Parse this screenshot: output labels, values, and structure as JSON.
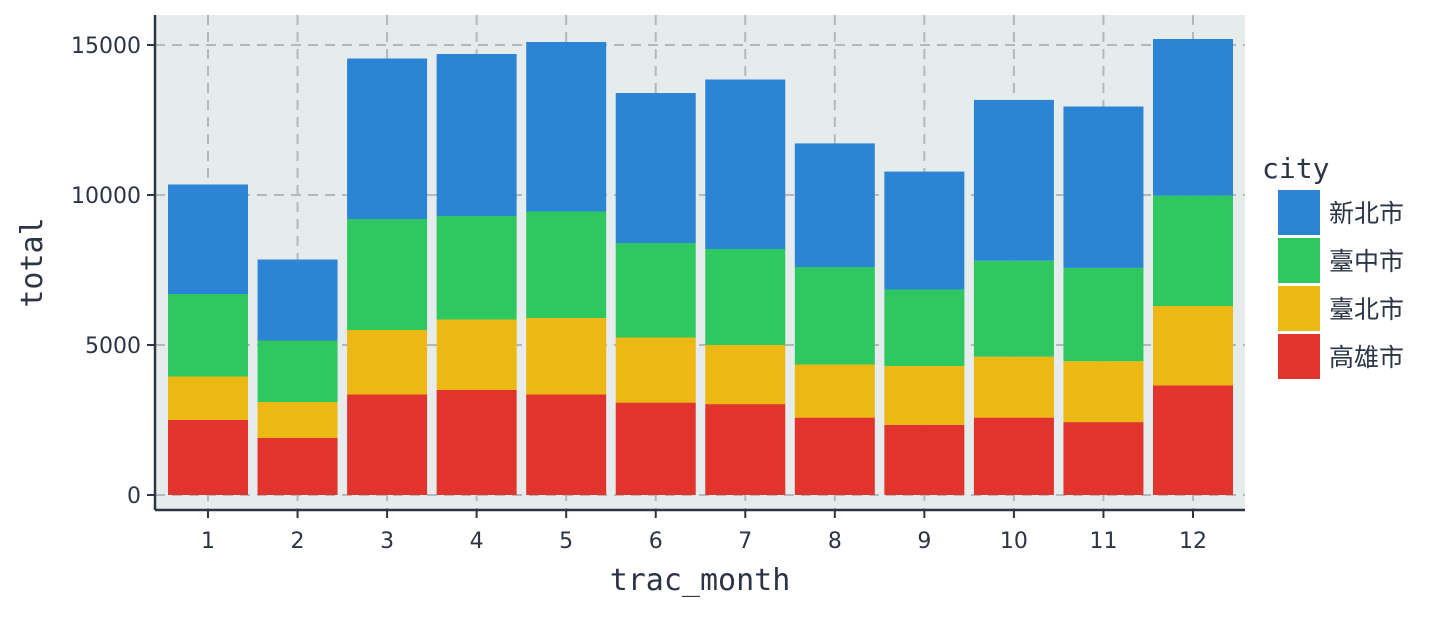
{
  "chart_data": {
    "type": "bar",
    "stacked": true,
    "categories": [
      "1",
      "2",
      "3",
      "4",
      "5",
      "6",
      "7",
      "8",
      "9",
      "10",
      "11",
      "12"
    ],
    "series": [
      {
        "name": "高雄市",
        "color": "#e0342d",
        "values": [
          2500,
          1900,
          3350,
          3500,
          3350,
          3080,
          3030,
          2580,
          2340,
          2580,
          2430,
          3650
        ]
      },
      {
        "name": "臺北市",
        "color": "#ecb813",
        "values": [
          1450,
          1200,
          2150,
          2350,
          2550,
          2170,
          1970,
          1770,
          1960,
          2030,
          2030,
          2650
        ]
      },
      {
        "name": "臺中市",
        "color": "#2ec760",
        "values": [
          2750,
          2050,
          3700,
          3450,
          3550,
          3150,
          3200,
          3250,
          2550,
          3200,
          3110,
          3680
        ]
      },
      {
        "name": "新北市",
        "color": "#2b85d4",
        "values": [
          3650,
          2700,
          5350,
          5400,
          5650,
          5000,
          5650,
          4120,
          3930,
          5360,
          5380,
          5220
        ]
      }
    ],
    "xlabel": "trac_month",
    "ylabel": "total",
    "ylim": [
      -500,
      16000
    ],
    "yticks": [
      "0",
      "5000",
      "10000",
      "15000"
    ],
    "legend_title": "city",
    "legend_order": [
      "新北市",
      "臺中市",
      "臺北市",
      "高雄市"
    ],
    "legend_position": "right",
    "grid": true,
    "panel_background": "#e6ecec"
  }
}
